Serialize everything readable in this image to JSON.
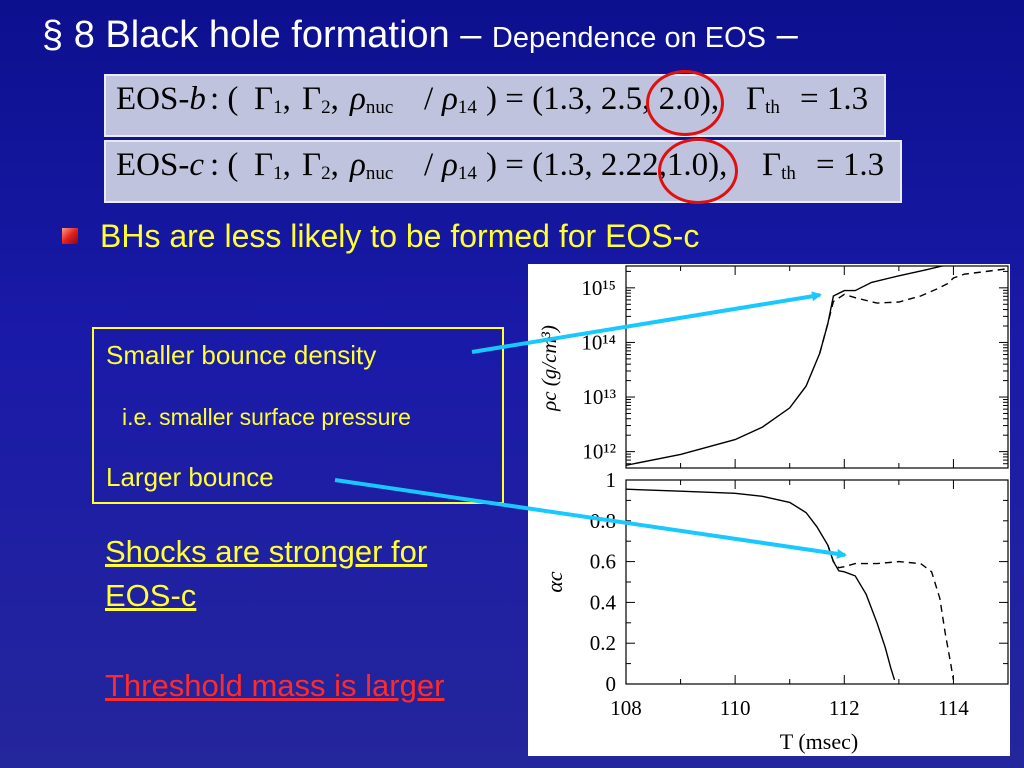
{
  "title": {
    "main": "§ 8  Black hole formation –",
    "sub": "Dependence on EOS",
    "dash": "–"
  },
  "eos_b": {
    "label": "EOS-",
    "letter": "b",
    "paren_open": ": (",
    "gamma": "Γ",
    "sub1": "1",
    "sub2": "2",
    "rho": "ρ",
    "sub_nuc": "nuc",
    "slash": "/",
    "sub_14": "14",
    "values": ") = (1.3, 2.5, 2.0),",
    "gamma_th_sub": "th",
    "gamma_th_value": "= 1.3"
  },
  "eos_c": {
    "label": "EOS-",
    "letter": "c",
    "paren_open": ": (",
    "gamma": "Γ",
    "sub1": "1",
    "sub2": "2",
    "rho": "ρ",
    "sub_nuc": "nuc",
    "slash": "/",
    "sub_14": "14",
    "values": ") = (1.3, 2.22,1.0),",
    "gamma_th_sub": "th",
    "gamma_th_value": "= 1.3"
  },
  "bullet": "BHs are less likely to be formed for EOS-c",
  "box": {
    "line1": "Smaller bounce density",
    "line2": "i.e. smaller surface pressure",
    "line3": "Larger bounce"
  },
  "shocks": {
    "line1": "Shocks are stronger for",
    "line2": "EOS-c"
  },
  "threshold": "Threshold mass is larger",
  "colors": {
    "background": "#1414a0",
    "title": "#ffffff",
    "highlight": "#ffff33",
    "emphasis": "#ff2a2a",
    "arrow": "#18c8ff",
    "circle": "#e01010"
  },
  "chart_data": [
    {
      "type": "line",
      "title": "",
      "ylabel": "ρc  (g/cm³)",
      "y_scale": "log",
      "y_tick_labels": [
        "10¹²",
        "10¹³",
        "10¹⁴",
        "10¹⁵"
      ],
      "y_ticks": [
        12,
        13,
        14,
        15
      ],
      "ylim_log10": [
        11.7,
        15.4
      ],
      "xlim": [
        108,
        115
      ],
      "series": [
        {
          "style": "solid",
          "x": [
            108,
            109,
            110,
            110.5,
            111,
            111.3,
            111.55,
            111.7,
            111.8,
            112,
            112.2,
            112.5,
            113,
            113.5,
            114,
            114.5,
            115
          ],
          "y": [
            11.75,
            11.95,
            12.22,
            12.45,
            12.8,
            13.2,
            13.8,
            14.35,
            14.85,
            14.95,
            14.95,
            15.1,
            15.22,
            15.33,
            15.45,
            15.55,
            15.6
          ]
        },
        {
          "style": "dashed",
          "x": [
            111.55,
            111.7,
            111.8,
            112,
            112.2,
            112.6,
            113,
            113.4,
            113.7,
            113.9,
            114,
            114.2,
            115
          ],
          "y": [
            13.8,
            14.35,
            14.75,
            14.88,
            14.82,
            14.72,
            14.74,
            14.85,
            14.98,
            15.08,
            15.18,
            15.25,
            15.35
          ]
        }
      ]
    },
    {
      "type": "line",
      "title": "",
      "xlabel": "T  (msec)",
      "ylabel": "αc",
      "x_tick_labels": [
        "108",
        "110",
        "112",
        "114"
      ],
      "x_ticks": [
        108,
        110,
        112,
        114
      ],
      "y_tick_labels": [
        "0",
        "0.2",
        "0.4",
        "0.6",
        "0.8",
        "1"
      ],
      "y_ticks": [
        0,
        0.2,
        0.4,
        0.6,
        0.8,
        1
      ],
      "xlim": [
        108,
        115
      ],
      "ylim": [
        0,
        1
      ],
      "series": [
        {
          "style": "solid",
          "x": [
            108,
            109,
            110,
            110.5,
            111,
            111.3,
            111.5,
            111.7,
            111.8,
            111.9,
            112,
            112.2,
            112.4,
            112.6,
            112.75,
            112.85,
            112.92
          ],
          "y": [
            0.955,
            0.945,
            0.935,
            0.92,
            0.89,
            0.84,
            0.77,
            0.68,
            0.6,
            0.555,
            0.55,
            0.53,
            0.44,
            0.3,
            0.18,
            0.08,
            0.02
          ]
        },
        {
          "style": "dashed",
          "x": [
            111.7,
            111.8,
            111.9,
            112,
            112.2,
            112.6,
            113,
            113.4,
            113.6,
            113.75,
            113.85,
            113.95,
            114
          ],
          "y": [
            0.68,
            0.6,
            0.57,
            0.575,
            0.59,
            0.59,
            0.6,
            0.59,
            0.55,
            0.42,
            0.25,
            0.1,
            0.02
          ]
        }
      ]
    }
  ]
}
